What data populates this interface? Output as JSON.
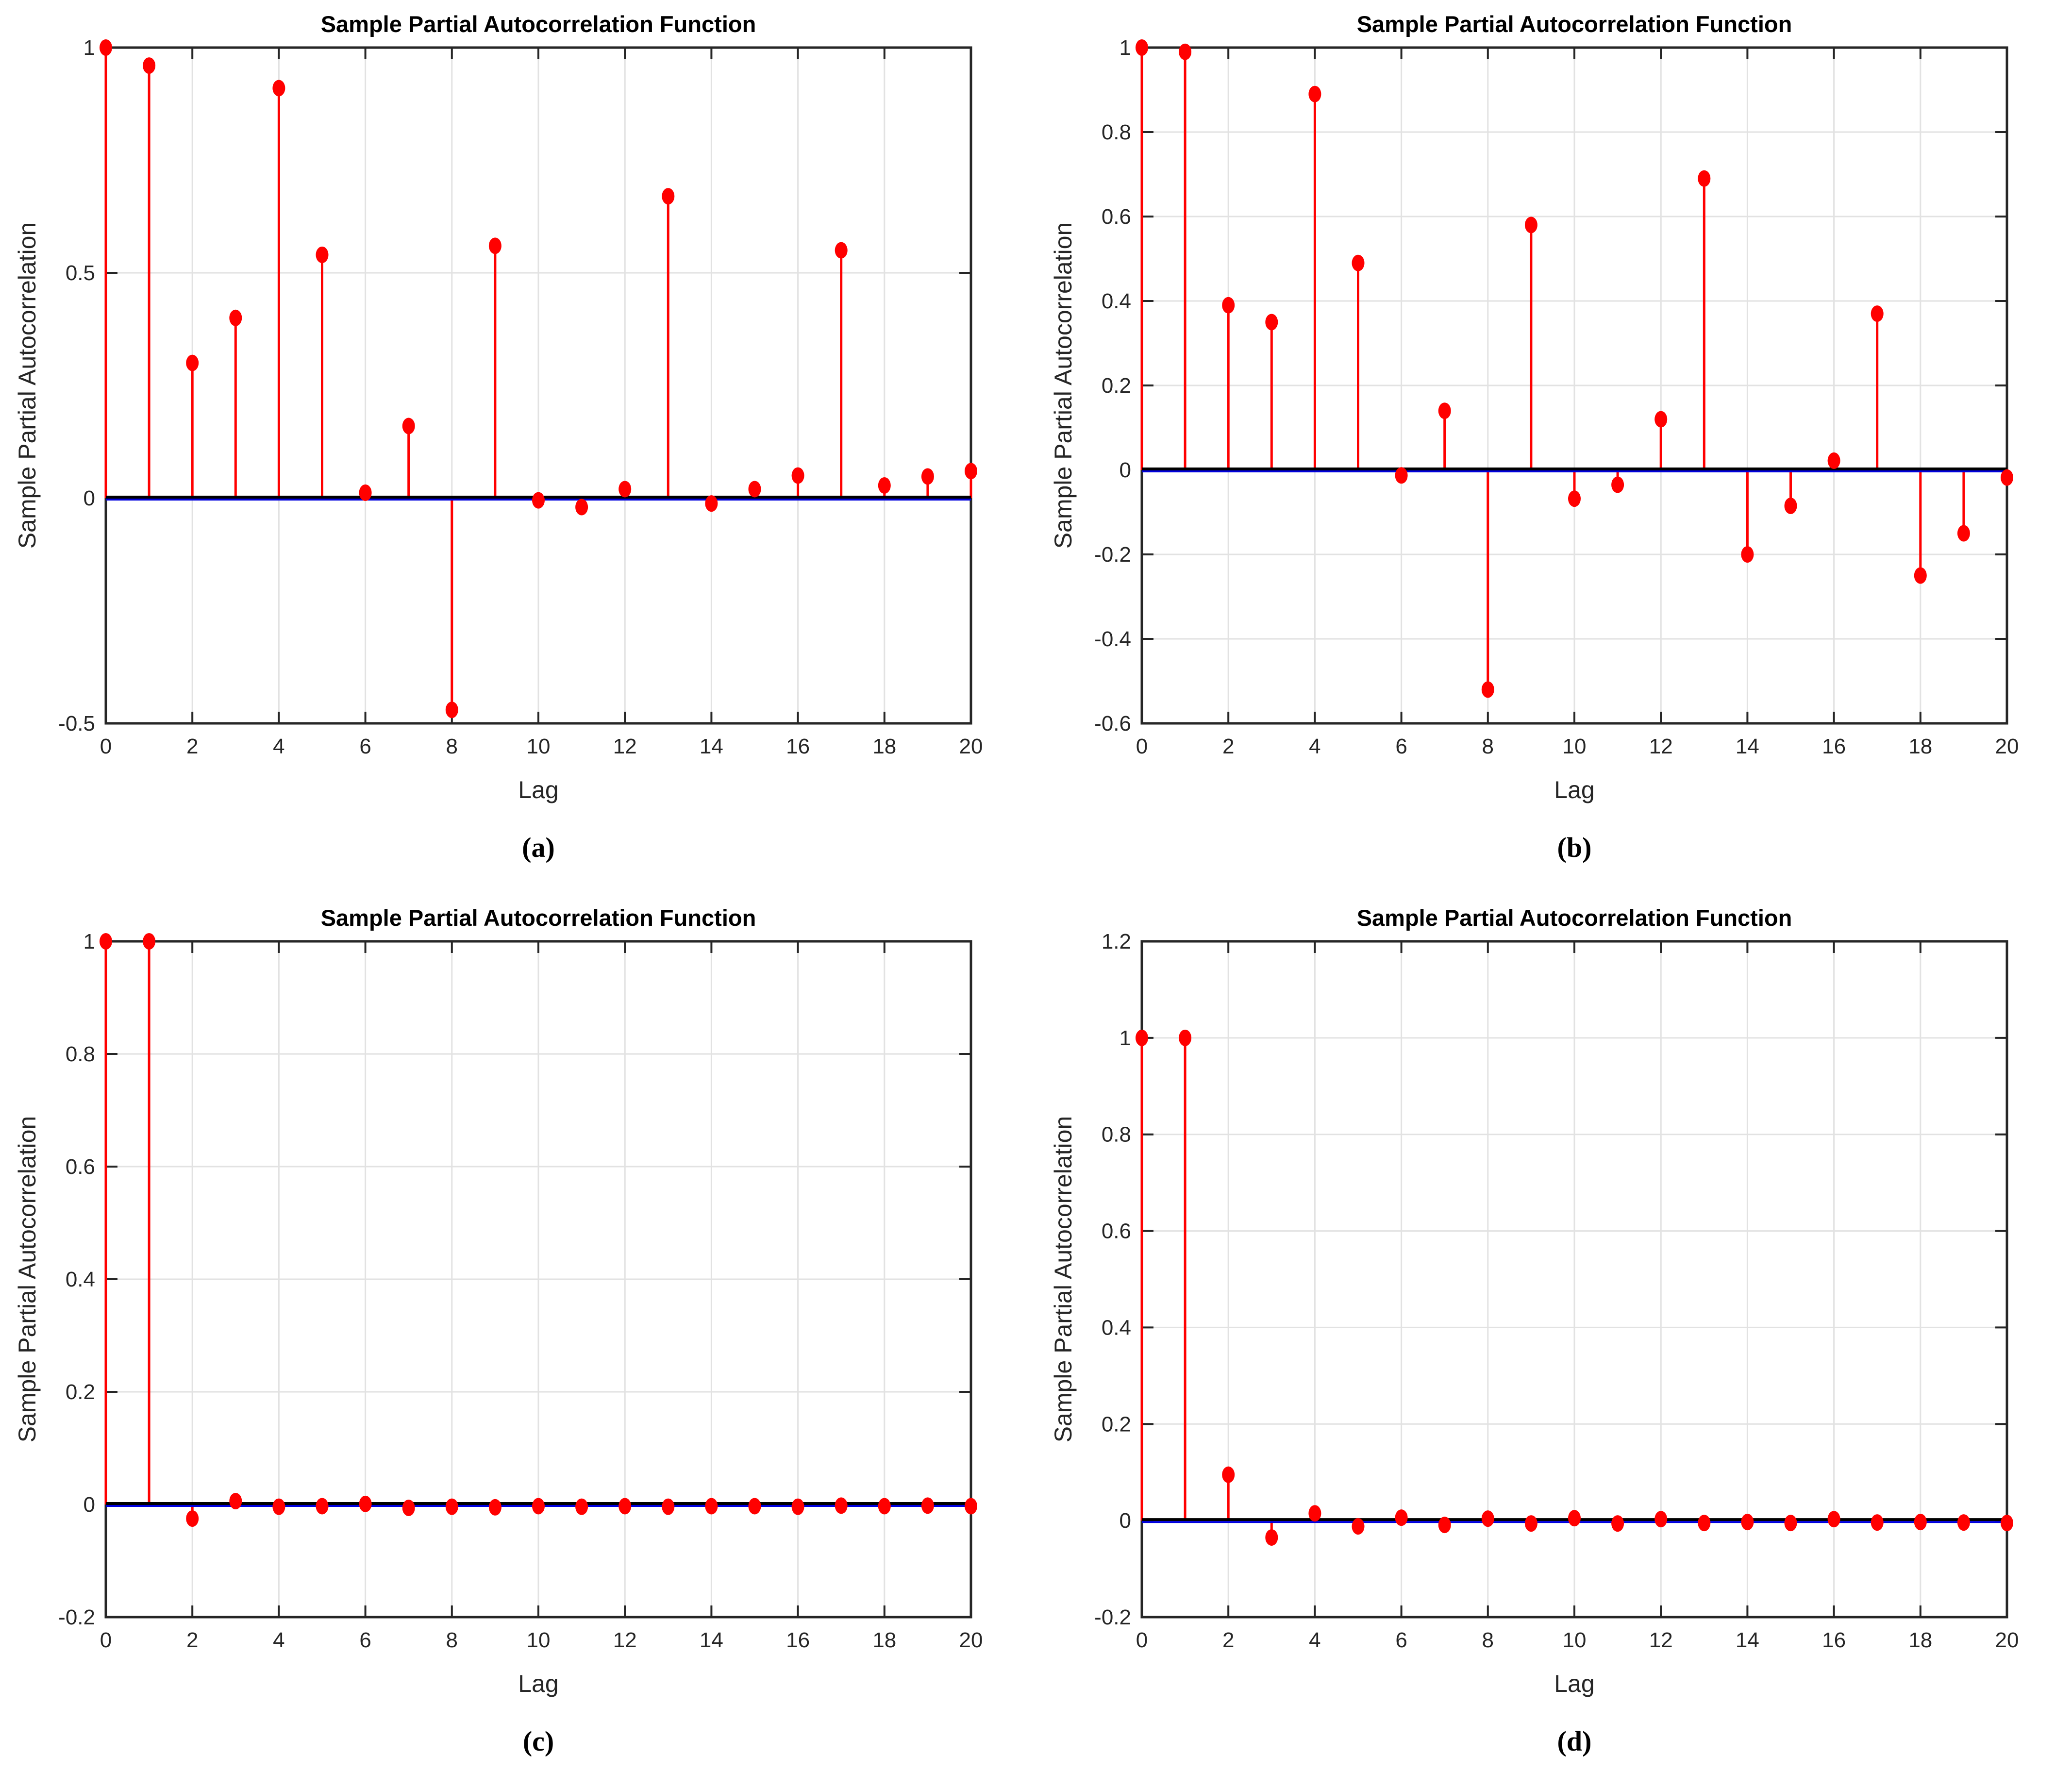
{
  "styles": {
    "background": "#ffffff",
    "stem_color": "#ff0000",
    "marker_color": "#ff0000",
    "zero_line_color": "#000000",
    "confidence_line_color": "#0000dd",
    "grid_color": "#e2e2e2",
    "axis_color": "#262626",
    "title_color": "#000000"
  },
  "chart_data": [
    {
      "type": "scatter",
      "variant": "stem",
      "panel": "a",
      "caption": "(a)",
      "title": "Sample Partial Autocorrelation Function",
      "xlabel": "Lag",
      "ylabel": "Sample Partial Autocorrelation",
      "grid": true,
      "legend": null,
      "xlim": [
        0,
        20
      ],
      "ylim": [
        -0.5,
        1
      ],
      "xticks": [
        0,
        2,
        4,
        6,
        8,
        10,
        12,
        14,
        16,
        18,
        20
      ],
      "yticks": [
        1,
        0.5,
        0,
        -0.5
      ],
      "x": [
        0,
        1,
        2,
        3,
        4,
        5,
        6,
        7,
        8,
        9,
        10,
        11,
        12,
        13,
        14,
        15,
        16,
        17,
        18,
        19,
        20
      ],
      "y": [
        1.0,
        0.96,
        0.3,
        0.4,
        0.91,
        0.54,
        0.012,
        0.16,
        -0.47,
        0.56,
        -0.005,
        -0.02,
        0.02,
        0.67,
        -0.012,
        0.02,
        0.05,
        0.55,
        0.028,
        0.048,
        0.06
      ]
    },
    {
      "type": "scatter",
      "variant": "stem",
      "panel": "b",
      "caption": "(b)",
      "title": "Sample Partial Autocorrelation Function",
      "xlabel": "Lag",
      "ylabel": "Sample Partial Autocorrelation",
      "grid": true,
      "legend": null,
      "xlim": [
        0,
        20
      ],
      "ylim": [
        -0.6,
        1
      ],
      "xticks": [
        0,
        2,
        4,
        6,
        8,
        10,
        12,
        14,
        16,
        18,
        20
      ],
      "yticks": [
        1,
        0.8,
        0.6,
        0.4,
        0.2,
        0,
        -0.2,
        -0.4,
        -0.6
      ],
      "x": [
        0,
        1,
        2,
        3,
        4,
        5,
        6,
        7,
        8,
        9,
        10,
        11,
        12,
        13,
        14,
        15,
        16,
        17,
        18,
        19,
        20
      ],
      "y": [
        1.0,
        0.99,
        0.39,
        0.35,
        0.89,
        0.49,
        -0.013,
        0.14,
        -0.52,
        0.58,
        -0.068,
        -0.035,
        0.12,
        0.69,
        -0.2,
        -0.085,
        0.022,
        0.37,
        -0.25,
        -0.15,
        -0.018
      ]
    },
    {
      "type": "scatter",
      "variant": "stem",
      "panel": "c",
      "caption": "(c)",
      "title": "Sample Partial Autocorrelation Function",
      "xlabel": "Lag",
      "ylabel": "Sample Partial Autocorrelation",
      "grid": true,
      "legend": null,
      "xlim": [
        0,
        20
      ],
      "ylim": [
        -0.2,
        1
      ],
      "xticks": [
        0,
        2,
        4,
        6,
        8,
        10,
        12,
        14,
        16,
        18,
        20
      ],
      "yticks": [
        1,
        0.8,
        0.6,
        0.4,
        0.2,
        0,
        -0.2
      ],
      "x": [
        0,
        1,
        2,
        3,
        4,
        5,
        6,
        7,
        8,
        9,
        10,
        11,
        12,
        13,
        14,
        15,
        16,
        17,
        18,
        19,
        20
      ],
      "y": [
        1.0,
        1.0,
        -0.025,
        0.006,
        -0.004,
        -0.003,
        0.001,
        -0.006,
        -0.004,
        -0.005,
        -0.003,
        -0.004,
        -0.003,
        -0.004,
        -0.003,
        -0.003,
        -0.004,
        -0.002,
        -0.003,
        -0.002,
        -0.003
      ]
    },
    {
      "type": "scatter",
      "variant": "stem",
      "panel": "d",
      "caption": "(d)",
      "title": "Sample Partial Autocorrelation Function",
      "xlabel": "Lag",
      "ylabel": "Sample Partial Autocorrelation",
      "grid": true,
      "legend": null,
      "xlim": [
        0,
        20
      ],
      "ylim": [
        -0.2,
        1.2
      ],
      "xticks": [
        0,
        2,
        4,
        6,
        8,
        10,
        12,
        14,
        16,
        18,
        20
      ],
      "yticks": [
        1.2,
        1,
        0.8,
        0.6,
        0.4,
        0.2,
        0,
        -0.2
      ],
      "x": [
        0,
        1,
        2,
        3,
        4,
        5,
        6,
        7,
        8,
        9,
        10,
        11,
        12,
        13,
        14,
        15,
        16,
        17,
        18,
        19,
        20
      ],
      "y": [
        1.0,
        1.0,
        0.095,
        -0.035,
        0.015,
        -0.012,
        0.006,
        -0.009,
        0.004,
        -0.006,
        0.005,
        -0.006,
        0.003,
        -0.005,
        -0.003,
        -0.005,
        0.003,
        -0.004,
        -0.003,
        -0.004,
        -0.005
      ]
    }
  ]
}
